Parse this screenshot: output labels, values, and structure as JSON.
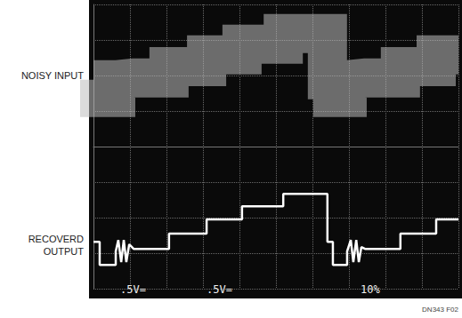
{
  "chart_data": {
    "type": "line",
    "xlim": [
      0,
      10
    ],
    "ylim": [
      -4,
      4
    ],
    "xticks": [
      0,
      1,
      2,
      3,
      4,
      5,
      6,
      7,
      8,
      9,
      10
    ],
    "yticks": [
      -4,
      -3,
      -2,
      -1,
      0,
      1,
      2,
      3,
      4
    ],
    "grid": true,
    "tick_labels": false,
    "annotations": [
      ".5V=",
      ".5V=",
      "10%",
      "DN343 F02"
    ],
    "series": [
      {
        "name": "NOISY INPUT",
        "color": "#bdbdbd",
        "x": [
          0,
          0.17,
          0.17,
          0.61,
          0.61,
          1.1,
          2.07,
          2.07,
          3.1,
          3.1,
          4.07,
          4.07,
          5.2,
          5.2,
          6.41,
          6.41,
          6.56,
          6.56,
          6.95,
          6.95,
          7.44,
          8.41,
          8.41,
          9.39,
          9.39,
          10
        ],
        "values": [
          1.88,
          1.88,
          1.38,
          1.38,
          1.88,
          1.93,
          1.93,
          2.25,
          2.25,
          2.58,
          2.58,
          2.88,
          2.88,
          3.18,
          3.18,
          1.88,
          1.88,
          1.38,
          1.38,
          1.88,
          1.93,
          1.93,
          2.25,
          2.25,
          2.58,
          2.58
        ]
      },
      {
        "name": "RECOVERD OUTPUT",
        "color": "#ffffff",
        "x": [
          0,
          0.17,
          0.17,
          0.61,
          0.61,
          0.68,
          0.76,
          0.83,
          0.9,
          0.98,
          1.1,
          2.07,
          2.07,
          3.1,
          3.1,
          4.07,
          4.07,
          5.2,
          5.2,
          6.41,
          6.41,
          6.56,
          6.56,
          6.95,
          6.95,
          7.05,
          7.12,
          7.2,
          7.27,
          7.34,
          7.44,
          8.41,
          8.41,
          9.39,
          9.39,
          10
        ],
        "values": [
          -2.68,
          -2.68,
          -3.33,
          -3.33,
          -2.95,
          -2.63,
          -3.25,
          -2.63,
          -3.25,
          -2.75,
          -2.88,
          -2.88,
          -2.45,
          -2.45,
          -2.05,
          -2.05,
          -1.68,
          -1.68,
          -1.33,
          -1.33,
          -2.68,
          -2.68,
          -3.33,
          -3.33,
          -2.95,
          -2.63,
          -3.25,
          -2.63,
          -3.25,
          -2.83,
          -2.88,
          -2.88,
          -2.45,
          -2.45,
          -2.05,
          -2.05
        ]
      }
    ]
  }
}
